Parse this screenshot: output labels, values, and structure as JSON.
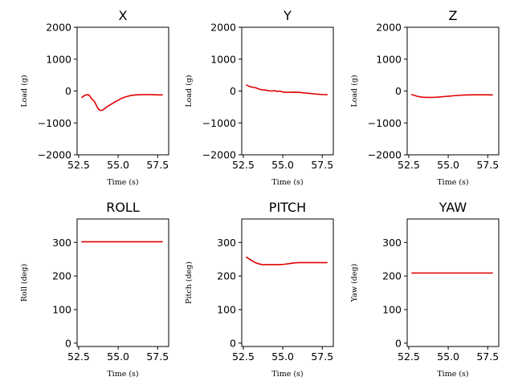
{
  "chart_data": [
    {
      "type": "line",
      "title": "X",
      "xlabel": "Time (s)",
      "ylabel": "Load (g)",
      "xlim": [
        52.4,
        58.2
      ],
      "ylim": [
        -2000,
        2000
      ],
      "xticks": [
        52.5,
        55.0,
        57.5
      ],
      "xtick_labels": [
        "52.5",
        "55.0",
        "57.5"
      ],
      "yticks": [
        -2000,
        -1000,
        0,
        1000,
        2000
      ],
      "ytick_labels": [
        "−2000",
        "−1000",
        "0",
        "1000",
        "2000"
      ],
      "grid": false,
      "series": [
        {
          "color": "#e00000",
          "x": [
            52.7,
            52.9,
            53.1,
            53.2,
            53.3,
            53.5,
            53.6,
            53.7,
            53.8,
            53.9,
            54.0,
            54.1,
            54.2,
            54.4,
            54.6,
            54.8,
            55.0,
            55.2,
            55.5,
            55.8,
            56.1,
            56.4,
            56.8,
            57.2,
            57.6,
            57.8
          ],
          "y": [
            -200,
            -130,
            -110,
            -150,
            -230,
            -330,
            -430,
            -530,
            -590,
            -610,
            -600,
            -570,
            -530,
            -460,
            -400,
            -340,
            -290,
            -230,
            -180,
            -140,
            -120,
            -115,
            -110,
            -115,
            -120,
            -120
          ]
        }
      ]
    },
    {
      "type": "line",
      "title": "Y",
      "xlabel": "Time (s)",
      "ylabel": "Load (g)",
      "xlim": [
        52.4,
        58.2
      ],
      "ylim": [
        -2000,
        2000
      ],
      "xticks": [
        52.5,
        55.0,
        57.5
      ],
      "xtick_labels": [
        "52.5",
        "55.0",
        "57.5"
      ],
      "yticks": [
        -2000,
        -1000,
        0,
        1000,
        2000
      ],
      "ytick_labels": [
        "−2000",
        "−1000",
        "0",
        "1000",
        "2000"
      ],
      "grid": false,
      "series": [
        {
          "color": "#e00000",
          "x": [
            52.7,
            52.9,
            53.1,
            53.3,
            53.5,
            53.7,
            53.9,
            54.1,
            54.3,
            54.5,
            54.6,
            54.8,
            55.0,
            55.2,
            55.5,
            55.8,
            56.0,
            56.3,
            56.6,
            56.9,
            57.2,
            57.5,
            57.8
          ],
          "y": [
            190,
            140,
            120,
            100,
            60,
            40,
            30,
            10,
            0,
            10,
            -10,
            0,
            -30,
            -40,
            -40,
            -35,
            -40,
            -55,
            -70,
            -85,
            -100,
            -110,
            -115
          ]
        }
      ]
    },
    {
      "type": "line",
      "title": "Z",
      "xlabel": "Time (s)",
      "ylabel": "Load (g)",
      "xlim": [
        52.4,
        58.2
      ],
      "ylim": [
        -2000,
        2000
      ],
      "xticks": [
        52.5,
        55.0,
        57.5
      ],
      "xtick_labels": [
        "52.5",
        "55.0",
        "57.5"
      ],
      "yticks": [
        -2000,
        -1000,
        0,
        1000,
        2000
      ],
      "ytick_labels": [
        "−2000",
        "−1000",
        "0",
        "1000",
        "2000"
      ],
      "grid": false,
      "series": [
        {
          "color": "#e00000",
          "x": [
            52.7,
            53.0,
            53.3,
            53.6,
            53.9,
            54.2,
            54.5,
            54.8,
            55.1,
            55.4,
            55.7,
            56.0,
            56.4,
            56.8,
            57.2,
            57.6,
            57.8
          ],
          "y": [
            -110,
            -160,
            -190,
            -200,
            -200,
            -195,
            -185,
            -170,
            -160,
            -145,
            -135,
            -125,
            -120,
            -118,
            -118,
            -120,
            -120
          ]
        }
      ]
    },
    {
      "type": "line",
      "title": "ROLL",
      "xlabel": "Time (s)",
      "ylabel": "Roll (deg)",
      "xlim": [
        52.4,
        58.2
      ],
      "ylim": [
        -10,
        370
      ],
      "xticks": [
        52.5,
        55.0,
        57.5
      ],
      "xtick_labels": [
        "52.5",
        "55.0",
        "57.5"
      ],
      "yticks": [
        0,
        100,
        200,
        300
      ],
      "ytick_labels": [
        "0",
        "100",
        "200",
        "300"
      ],
      "grid": false,
      "series": [
        {
          "color": "#e00000",
          "x": [
            52.7,
            53.5,
            54.5,
            55.5,
            56.5,
            57.5,
            57.8
          ],
          "y": [
            302,
            302,
            302,
            302,
            302,
            302,
            302
          ]
        }
      ]
    },
    {
      "type": "line",
      "title": "PITCH",
      "xlabel": "Time (s)",
      "ylabel": "Pitch (deg)",
      "xlim": [
        52.4,
        58.2
      ],
      "ylim": [
        -10,
        370
      ],
      "xticks": [
        52.5,
        55.0,
        57.5
      ],
      "xtick_labels": [
        "52.5",
        "55.0",
        "57.5"
      ],
      "yticks": [
        0,
        100,
        200,
        300
      ],
      "ytick_labels": [
        "0",
        "100",
        "200",
        "300"
      ],
      "grid": false,
      "series": [
        {
          "color": "#e00000",
          "x": [
            52.7,
            52.9,
            53.1,
            53.3,
            53.5,
            53.7,
            54.0,
            54.4,
            54.8,
            55.1,
            55.4,
            55.7,
            56.0,
            56.4,
            56.8,
            57.2,
            57.6,
            57.8
          ],
          "y": [
            256,
            250,
            244,
            239,
            236,
            234,
            234,
            234,
            234,
            235,
            237,
            239,
            240,
            240,
            240,
            240,
            240,
            240
          ]
        }
      ]
    },
    {
      "type": "line",
      "title": "YAW",
      "xlabel": "Time (s)",
      "ylabel": "Yaw (deg)",
      "xlim": [
        52.4,
        58.2
      ],
      "ylim": [
        -10,
        370
      ],
      "xticks": [
        52.5,
        55.0,
        57.5
      ],
      "xtick_labels": [
        "52.5",
        "55.0",
        "57.5"
      ],
      "yticks": [
        0,
        100,
        200,
        300
      ],
      "ytick_labels": [
        "0",
        "100",
        "200",
        "300"
      ],
      "grid": false,
      "series": [
        {
          "color": "#e00000",
          "x": [
            52.7,
            53.5,
            54.5,
            55.5,
            56.5,
            57.5,
            57.8
          ],
          "y": [
            209,
            209,
            209,
            209,
            209,
            209,
            209
          ]
        }
      ]
    }
  ]
}
